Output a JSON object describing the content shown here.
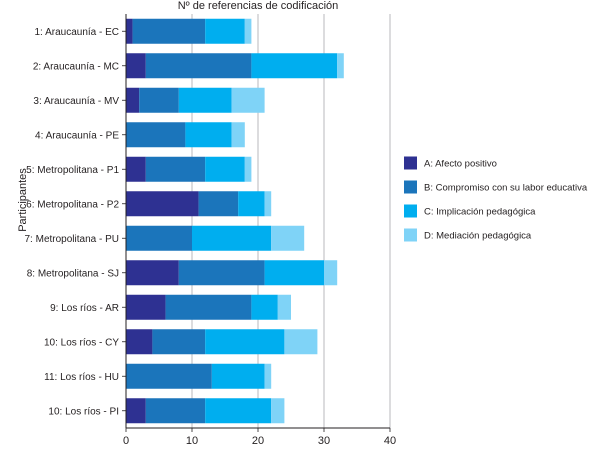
{
  "chart_data": {
    "type": "bar",
    "orientation": "horizontal",
    "stacked": true,
    "title": "Nº de referencias de codificación",
    "xlabel": "",
    "ylabel": "Participantes",
    "xlim": [
      0,
      40
    ],
    "xticks": [
      0,
      10,
      20,
      30,
      40
    ],
    "grid": true,
    "legend_position": "right",
    "categories": [
      "1: Araucaunía - EC",
      "2: Araucaunía - MC",
      "3: Araucaunía - MV",
      "4: Araucaunía - PE",
      "5: Metropolitana - P1",
      "6: Metropolitana - P2",
      "7: Metropolitana - PU",
      "8: Metropolitana - SJ",
      "9: Los ríos - AR",
      "10: Los ríos - CY",
      "11: Los ríos - HU",
      "10: Los ríos - PI"
    ],
    "series": [
      {
        "name": "A: Afecto positivo",
        "color": "#2e3192",
        "values": [
          1,
          3,
          2,
          0,
          3,
          11,
          0,
          8,
          6,
          4,
          0,
          3
        ]
      },
      {
        "name": "B: Compromiso con su labor educativa",
        "color": "#1b75bb",
        "values": [
          11,
          16,
          6,
          9,
          9,
          6,
          10,
          13,
          13,
          8,
          13,
          9
        ]
      },
      {
        "name": "C: Implicación pedagógica",
        "color": "#00aeef",
        "values": [
          6,
          13,
          8,
          7,
          6,
          4,
          12,
          9,
          4,
          12,
          8,
          10
        ]
      },
      {
        "name": "D: Mediación pedagógica",
        "color": "#7fd3f7",
        "values": [
          1,
          1,
          5,
          2,
          1,
          1,
          5,
          2,
          2,
          5,
          1,
          2
        ]
      }
    ]
  }
}
